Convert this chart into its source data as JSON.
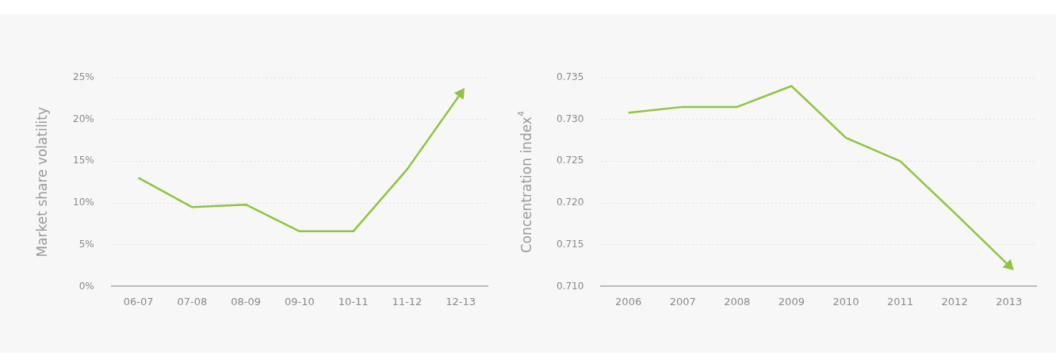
{
  "chart_data": [
    {
      "type": "line",
      "ylabel": "Market share volatility",
      "categories": [
        "06-07",
        "07-08",
        "08-09",
        "09-10",
        "10-11",
        "11-12",
        "12-13"
      ],
      "series": [
        {
          "color": "#8cc63f",
          "values": [
            13,
            9.5,
            9.8,
            6.6,
            6.6,
            14,
            23.1
          ]
        }
      ],
      "ylim": [
        0,
        25
      ],
      "yticks": [
        {
          "value": 0,
          "label": "0%"
        },
        {
          "value": 5,
          "label": "5%"
        },
        {
          "value": 10,
          "label": "10%"
        },
        {
          "value": 15,
          "label": "15%"
        },
        {
          "value": 20,
          "label": "20%"
        },
        {
          "value": 25,
          "label": "25%"
        }
      ],
      "grid": "y",
      "legend": false,
      "marker": "none",
      "line_style": "solid"
    },
    {
      "type": "line",
      "ylabel": "Concentration index$^{4}$",
      "categories": [
        "2006",
        "2007",
        "2008",
        "2009",
        "2010",
        "2011",
        "2012",
        "2013"
      ],
      "series": [
        {
          "color": "#8cc63f",
          "values": [
            0.7308,
            0.7315,
            0.7315,
            0.734,
            0.7278,
            0.725,
            0.7188,
            0.7125
          ]
        }
      ],
      "ylim": [
        0.71,
        0.735
      ],
      "yticks": [
        {
          "value": 0.71,
          "label": "0.710"
        },
        {
          "value": 0.715,
          "label": "0.715"
        },
        {
          "value": 0.72,
          "label": "0.720"
        },
        {
          "value": 0.725,
          "label": "0.725"
        },
        {
          "value": 0.73,
          "label": "0.730"
        },
        {
          "value": 0.735,
          "label": "0.735"
        }
      ],
      "grid": "y",
      "legend": false,
      "marker": "none",
      "line_style": "solid"
    }
  ]
}
